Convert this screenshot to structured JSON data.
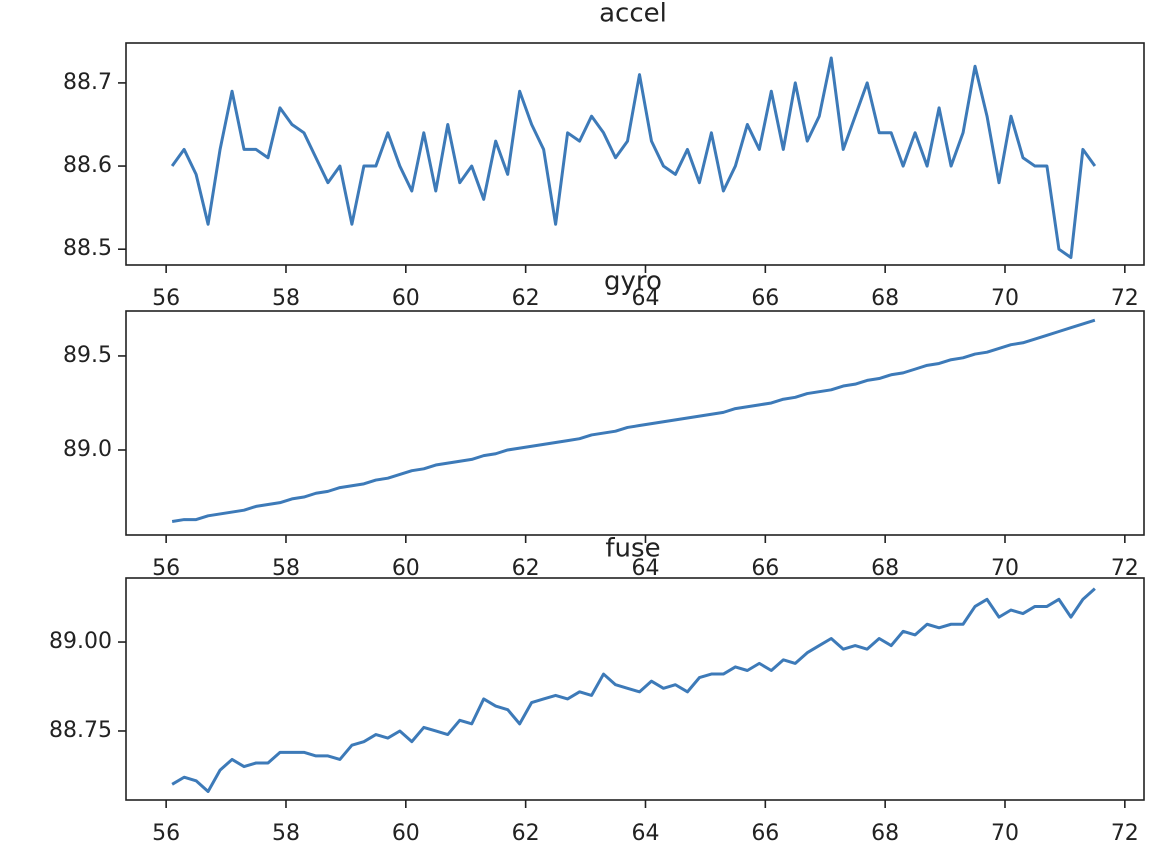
{
  "chart_data": [
    {
      "type": "line",
      "title": "accel",
      "color": "#3d7ab8",
      "x": [
        56.1,
        56.3,
        56.5,
        56.7,
        56.9,
        57.1,
        57.3,
        57.5,
        57.7,
        57.9,
        58.1,
        58.3,
        58.5,
        58.7,
        58.9,
        59.1,
        59.3,
        59.5,
        59.7,
        59.9,
        60.1,
        60.3,
        60.5,
        60.7,
        60.9,
        61.1,
        61.3,
        61.5,
        61.7,
        61.9,
        62.1,
        62.3,
        62.5,
        62.7,
        62.9,
        63.1,
        63.3,
        63.5,
        63.7,
        63.9,
        64.1,
        64.3,
        64.5,
        64.7,
        64.9,
        65.1,
        65.3,
        65.5,
        65.7,
        65.9,
        66.1,
        66.3,
        66.5,
        66.7,
        66.9,
        67.1,
        67.3,
        67.5,
        67.7,
        67.9,
        68.1,
        68.3,
        68.5,
        68.7,
        68.9,
        69.1,
        69.3,
        69.5,
        69.7,
        69.9,
        70.1,
        70.3,
        70.5,
        70.7,
        70.9,
        71.1,
        71.3,
        71.5
      ],
      "values": [
        88.6,
        88.62,
        88.59,
        88.53,
        88.62,
        88.69,
        88.62,
        88.62,
        88.61,
        88.67,
        88.65,
        88.64,
        88.61,
        88.58,
        88.6,
        88.53,
        88.6,
        88.6,
        88.64,
        88.6,
        88.57,
        88.64,
        88.57,
        88.65,
        88.58,
        88.6,
        88.56,
        88.63,
        88.59,
        88.69,
        88.65,
        88.62,
        88.53,
        88.64,
        88.63,
        88.66,
        88.64,
        88.61,
        88.63,
        88.71,
        88.63,
        88.6,
        88.59,
        88.62,
        88.58,
        88.64,
        88.57,
        88.6,
        88.65,
        88.62,
        88.69,
        88.62,
        88.7,
        88.63,
        88.66,
        88.73,
        88.62,
        88.66,
        88.7,
        88.64,
        88.64,
        88.6,
        88.64,
        88.6,
        88.67,
        88.6,
        88.64,
        88.72,
        88.66,
        88.58,
        88.66,
        88.61,
        88.6,
        88.6,
        88.5,
        88.49,
        88.62,
        88.6
      ],
      "xlim": [
        55.33,
        72.32
      ],
      "xticks": [
        56,
        58,
        60,
        62,
        64,
        66,
        68,
        70,
        72
      ],
      "ylim": [
        88.481,
        88.748
      ],
      "yticks": [
        88.5,
        88.6,
        88.7
      ]
    },
    {
      "type": "line",
      "title": "gyro",
      "color": "#3d7ab8",
      "x": [
        56.1,
        56.3,
        56.5,
        56.7,
        56.9,
        57.1,
        57.3,
        57.5,
        57.7,
        57.9,
        58.1,
        58.3,
        58.5,
        58.7,
        58.9,
        59.1,
        59.3,
        59.5,
        59.7,
        59.9,
        60.1,
        60.3,
        60.5,
        60.7,
        60.9,
        61.1,
        61.3,
        61.5,
        61.7,
        61.9,
        62.1,
        62.3,
        62.5,
        62.7,
        62.9,
        63.1,
        63.3,
        63.5,
        63.7,
        63.9,
        64.1,
        64.3,
        64.5,
        64.7,
        64.9,
        65.1,
        65.3,
        65.5,
        65.7,
        65.9,
        66.1,
        66.3,
        66.5,
        66.7,
        66.9,
        67.1,
        67.3,
        67.5,
        67.7,
        67.9,
        68.1,
        68.3,
        68.5,
        68.7,
        68.9,
        69.1,
        69.3,
        69.5,
        69.7,
        69.9,
        70.1,
        70.3,
        70.5,
        70.7,
        70.9,
        71.1,
        71.3,
        71.5
      ],
      "values": [
        88.62,
        88.63,
        88.63,
        88.65,
        88.66,
        88.67,
        88.68,
        88.7,
        88.71,
        88.72,
        88.74,
        88.75,
        88.77,
        88.78,
        88.8,
        88.81,
        88.82,
        88.84,
        88.85,
        88.87,
        88.89,
        88.9,
        88.92,
        88.93,
        88.94,
        88.95,
        88.97,
        88.98,
        89.0,
        89.01,
        89.02,
        89.03,
        89.04,
        89.05,
        89.06,
        89.08,
        89.09,
        89.1,
        89.12,
        89.13,
        89.14,
        89.15,
        89.16,
        89.17,
        89.18,
        89.19,
        89.2,
        89.22,
        89.23,
        89.24,
        89.25,
        89.27,
        89.28,
        89.3,
        89.31,
        89.32,
        89.34,
        89.35,
        89.37,
        89.38,
        89.4,
        89.41,
        89.43,
        89.45,
        89.46,
        89.48,
        89.49,
        89.51,
        89.52,
        89.54,
        89.56,
        89.57,
        89.59,
        89.61,
        89.63,
        89.65,
        89.67,
        89.69
      ],
      "xlim": [
        55.33,
        72.32
      ],
      "xticks": [
        56,
        58,
        60,
        62,
        64,
        66,
        68,
        70,
        72
      ],
      "ylim": [
        88.548,
        89.739
      ],
      "yticks": [
        {
          "value": 89,
          "label": "89.0"
        },
        89.5
      ]
    },
    {
      "type": "line",
      "title": "fuse",
      "color": "#3d7ab8",
      "x": [
        56.1,
        56.3,
        56.5,
        56.7,
        56.9,
        57.1,
        57.3,
        57.5,
        57.7,
        57.9,
        58.1,
        58.3,
        58.5,
        58.7,
        58.9,
        59.1,
        59.3,
        59.5,
        59.7,
        59.9,
        60.1,
        60.3,
        60.5,
        60.7,
        60.9,
        61.1,
        61.3,
        61.5,
        61.7,
        61.9,
        62.1,
        62.3,
        62.5,
        62.7,
        62.9,
        63.1,
        63.3,
        63.5,
        63.7,
        63.9,
        64.1,
        64.3,
        64.5,
        64.7,
        64.9,
        65.1,
        65.3,
        65.5,
        65.7,
        65.9,
        66.1,
        66.3,
        66.5,
        66.7,
        66.9,
        67.1,
        67.3,
        67.5,
        67.7,
        67.9,
        68.1,
        68.3,
        68.5,
        68.7,
        68.9,
        69.1,
        69.3,
        69.5,
        69.7,
        69.9,
        70.1,
        70.3,
        70.5,
        70.7,
        70.9,
        71.1,
        71.3,
        71.5
      ],
      "values": [
        88.6,
        88.62,
        88.61,
        88.58,
        88.64,
        88.67,
        88.65,
        88.66,
        88.66,
        88.69,
        88.69,
        88.69,
        88.68,
        88.68,
        88.67,
        88.71,
        88.72,
        88.74,
        88.73,
        88.75,
        88.72,
        88.76,
        88.75,
        88.74,
        88.78,
        88.77,
        88.84,
        88.82,
        88.81,
        88.77,
        88.83,
        88.84,
        88.85,
        88.84,
        88.86,
        88.85,
        88.91,
        88.88,
        88.87,
        88.86,
        88.89,
        88.87,
        88.88,
        88.86,
        88.9,
        88.91,
        88.91,
        88.93,
        88.92,
        88.94,
        88.92,
        88.95,
        88.94,
        88.97,
        88.99,
        89.01,
        88.98,
        88.99,
        88.98,
        89.01,
        88.99,
        89.03,
        89.02,
        89.05,
        89.04,
        89.05,
        89.05,
        89.1,
        89.12,
        89.07,
        89.09,
        89.08,
        89.1,
        89.1,
        89.12,
        89.07,
        89.12,
        89.15
      ],
      "xlim": [
        55.33,
        72.32
      ],
      "xticks": [
        56,
        58,
        60,
        62,
        64,
        66,
        68,
        70,
        72
      ],
      "ylim": [
        88.556,
        89.18
      ],
      "yticks": [
        {
          "value": 89,
          "label": "89.00"
        },
        {
          "value": 88.75,
          "label": "88.75"
        }
      ]
    }
  ]
}
